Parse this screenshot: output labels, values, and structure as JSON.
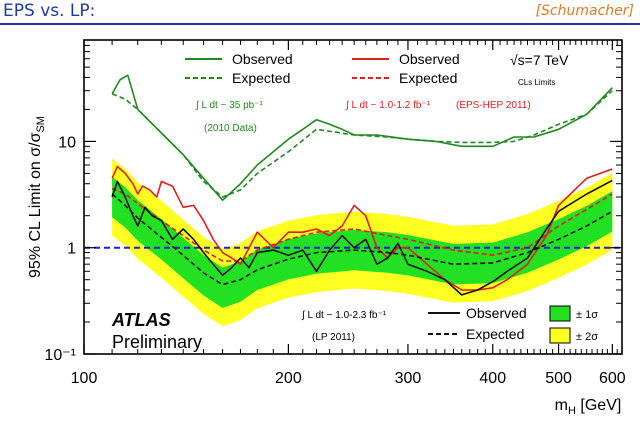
{
  "slide": {
    "title": "EPS vs. LP:",
    "author": "[Schumacher]"
  },
  "chart_data": {
    "type": "line",
    "xscale": "log",
    "yscale": "log",
    "xlim": [
      100,
      620
    ],
    "ylim": [
      0.1,
      90
    ],
    "ylabel": "95% CL Limit on σ/σ_SM",
    "xlabel": "m_H [GeV]",
    "x_ticks": [
      100,
      200,
      300,
      400,
      500,
      600
    ],
    "x_tick_labels": [
      "100",
      "200",
      "300",
      "400",
      "500",
      "600"
    ],
    "y_ticks": [
      0.1,
      1,
      10
    ],
    "y_tick_labels": [
      "10⁻¹",
      "1",
      "10"
    ],
    "reference_line": {
      "y": 1,
      "color": "#1f1fd6",
      "style": "dashed"
    },
    "energy_label": "√s=7 TeV",
    "cls_label": "CLs Limits",
    "experiment_label": "ATLAS",
    "status_label": "Preliminary",
    "legend": {
      "green_observed": "Observed",
      "green_expected": "Expected",
      "green_lumi": "∫ L dt ~ 35 pb⁻¹",
      "green_note": "(2010 Data)",
      "red_observed": "Observed",
      "red_expected": "Expected",
      "red_lumi": "∫ L dt ~ 1.0-1.2 fb⁻¹",
      "red_note": "(EPS-HEP 2011)",
      "black_lumi": "∫ L dt ~ 1.0-2.3 fb⁻¹",
      "black_note": "(LP 2011)",
      "black_observed": "Observed",
      "black_expected": "Expected",
      "band1": "± 1σ",
      "band2": "± 2σ"
    },
    "band_x": [
      110,
      115,
      120,
      130,
      140,
      150,
      160,
      170,
      180,
      200,
      220,
      250,
      280,
      300,
      350,
      400,
      450,
      500,
      550,
      600
    ],
    "band_exp": [
      3.0,
      2.4,
      1.8,
      1.2,
      0.8,
      0.55,
      0.42,
      0.48,
      0.62,
      0.78,
      0.88,
      0.95,
      0.9,
      0.85,
      0.7,
      0.72,
      0.9,
      1.2,
      1.6,
      2.2
    ],
    "band_1s_factor": 1.55,
    "band_2s_factor": 2.3,
    "series": [
      {
        "name": "2010 Observed",
        "color": "#1f8a1f",
        "dash": "none",
        "x": [
          110,
          113,
          116,
          120,
          130,
          140,
          150,
          160,
          170,
          180,
          190,
          200,
          210,
          220,
          230,
          240,
          250,
          270,
          300,
          330,
          360,
          400,
          430,
          460,
          500,
          550,
          600
        ],
        "y": [
          28,
          38,
          42,
          20,
          12,
          7.5,
          4.5,
          2.8,
          4.0,
          6.0,
          8.0,
          10.5,
          13.0,
          16.0,
          14.5,
          13.0,
          11.5,
          11.5,
          10.5,
          10.0,
          9.0,
          9.0,
          11.0,
          11.0,
          13.0,
          18.0,
          32.0
        ]
      },
      {
        "name": "2010 Expected",
        "color": "#1f8a1f",
        "dash": "5,3",
        "x": [
          110,
          115,
          120,
          130,
          140,
          150,
          160,
          170,
          180,
          200,
          220,
          250,
          280,
          300,
          330,
          360,
          400,
          430,
          460,
          500,
          550,
          600
        ],
        "y": [
          28,
          25,
          20,
          12,
          7.5,
          4.2,
          3.0,
          3.5,
          5.0,
          8.0,
          13.0,
          11.5,
          11.0,
          10.5,
          10.0,
          9.8,
          9.8,
          10.0,
          11.5,
          14.5,
          18.0,
          30.0
        ]
      },
      {
        "name": "EPS Observed",
        "color": "#e01f1f",
        "dash": "none",
        "x": [
          110,
          112,
          115,
          118,
          120,
          122,
          125,
          128,
          130,
          135,
          140,
          145,
          150,
          155,
          160,
          165,
          170,
          180,
          190,
          200,
          210,
          220,
          230,
          240,
          250,
          260,
          270,
          280,
          290,
          300,
          320,
          340,
          360,
          380,
          400,
          420,
          450,
          480,
          500,
          550,
          600
        ],
        "y": [
          4.5,
          5.8,
          5.0,
          4.0,
          3.2,
          3.8,
          3.5,
          3.0,
          4.2,
          3.8,
          2.4,
          2.5,
          1.8,
          1.2,
          0.9,
          0.8,
          0.7,
          1.4,
          1.0,
          1.4,
          1.4,
          1.5,
          1.3,
          1.6,
          2.5,
          2.0,
          1.0,
          0.8,
          1.0,
          1.0,
          0.7,
          0.5,
          0.4,
          0.4,
          0.42,
          0.5,
          0.7,
          1.3,
          2.5,
          4.5,
          5.5
        ]
      },
      {
        "name": "EPS Expected",
        "color": "#e01f1f",
        "dash": "5,3",
        "x": [
          110,
          115,
          120,
          130,
          140,
          150,
          160,
          170,
          180,
          200,
          220,
          250,
          280,
          300,
          350,
          400,
          450,
          500,
          550,
          600
        ],
        "y": [
          3.6,
          3.2,
          2.6,
          1.8,
          1.3,
          0.95,
          0.75,
          0.75,
          0.95,
          1.2,
          1.4,
          1.5,
          1.3,
          1.2,
          0.95,
          0.85,
          1.0,
          1.6,
          2.3,
          3.2
        ]
      },
      {
        "name": "LP Observed",
        "color": "#111111",
        "dash": "none",
        "x": [
          110,
          112,
          115,
          118,
          120,
          123,
          126,
          130,
          135,
          140,
          145,
          150,
          155,
          160,
          165,
          170,
          175,
          180,
          190,
          200,
          210,
          220,
          230,
          240,
          250,
          260,
          270,
          280,
          290,
          300,
          320,
          340,
          360,
          380,
          400,
          420,
          450,
          480,
          500,
          550,
          600
        ],
        "y": [
          3.0,
          4.2,
          3.0,
          2.0,
          1.6,
          2.4,
          2.0,
          1.8,
          1.2,
          1.5,
          1.2,
          0.9,
          0.7,
          0.55,
          0.65,
          0.8,
          0.65,
          0.9,
          0.95,
          0.85,
          0.95,
          0.6,
          0.95,
          1.3,
          1.0,
          1.2,
          0.7,
          0.8,
          1.1,
          0.7,
          0.6,
          0.5,
          0.36,
          0.4,
          0.48,
          0.6,
          0.8,
          1.5,
          2.2,
          3.2,
          4.3
        ]
      },
      {
        "name": "LP Expected",
        "color": "#111111",
        "dash": "5,3",
        "x": [
          110,
          115,
          120,
          130,
          140,
          150,
          160,
          170,
          180,
          200,
          220,
          250,
          280,
          300,
          350,
          400,
          450,
          500,
          550,
          600
        ],
        "y": [
          3.2,
          2.5,
          1.9,
          1.25,
          0.85,
          0.58,
          0.45,
          0.5,
          0.62,
          0.78,
          0.9,
          0.95,
          0.9,
          0.85,
          0.7,
          0.72,
          0.9,
          1.2,
          1.6,
          2.2
        ]
      }
    ]
  }
}
